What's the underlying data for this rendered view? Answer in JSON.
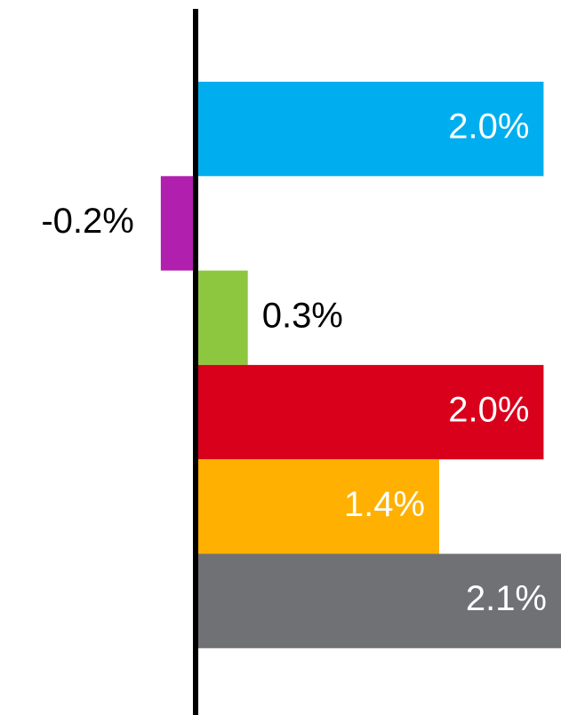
{
  "chart_data": {
    "type": "hbar",
    "categories": [
      null,
      null,
      null,
      null,
      null,
      null
    ],
    "values": [
      2.0,
      -0.2,
      0.3,
      2.0,
      1.4,
      2.1
    ],
    "value_labels": [
      "2.0%",
      "-0.2%",
      "0.3%",
      "2.0%",
      "1.4%",
      "2.1%"
    ],
    "colors": [
      "#00aeef",
      "#b01fad",
      "#8dc63f",
      "#d9001b",
      "#ffb000",
      "#707174"
    ]
  }
}
